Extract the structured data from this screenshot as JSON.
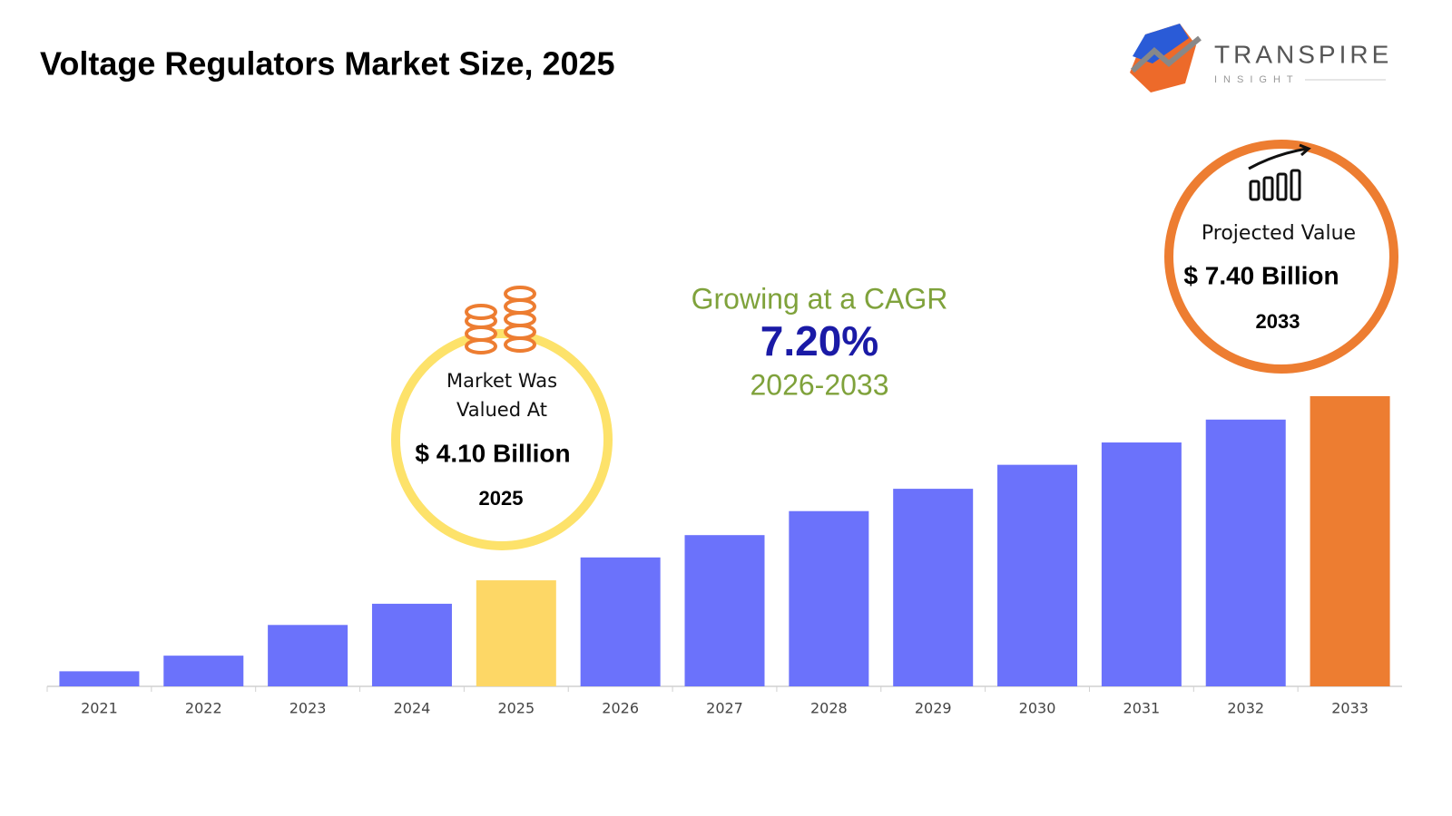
{
  "chart_data": {
    "type": "bar",
    "title": "Voltage Regulators Market Size, 2025",
    "brand": {
      "name": "TRANSPIRE",
      "tagline": "INSIGHT"
    },
    "categories": [
      "2021",
      "2022",
      "2023",
      "2024",
      "2025",
      "2026",
      "2027",
      "2028",
      "2029",
      "2030",
      "2031",
      "2032",
      "2033"
    ],
    "values": [
      2.47,
      2.75,
      3.3,
      3.68,
      4.1,
      4.51,
      4.91,
      5.34,
      5.74,
      6.17,
      6.57,
      6.98,
      7.4
    ],
    "colors": [
      "#6b72fb",
      "#6b72fb",
      "#6b72fb",
      "#6b72fb",
      "#fdd766",
      "#6b72fb",
      "#6b72fb",
      "#6b72fb",
      "#6b72fb",
      "#6b72fb",
      "#6b72fb",
      "#6b72fb",
      "#ed7d31"
    ],
    "ylim": [
      2.2,
      8.0
    ],
    "annotations": {
      "market": {
        "label": "Market Was Valued At",
        "value": "$ 4.10 Billion",
        "year": "2025"
      },
      "cagr": {
        "label": "Growing at a CAGR",
        "value": "7.20%",
        "period": "2026-2033"
      },
      "projected": {
        "label": "Projected Value",
        "value": "$ 7.40 Billion",
        "year": "2033"
      }
    }
  }
}
